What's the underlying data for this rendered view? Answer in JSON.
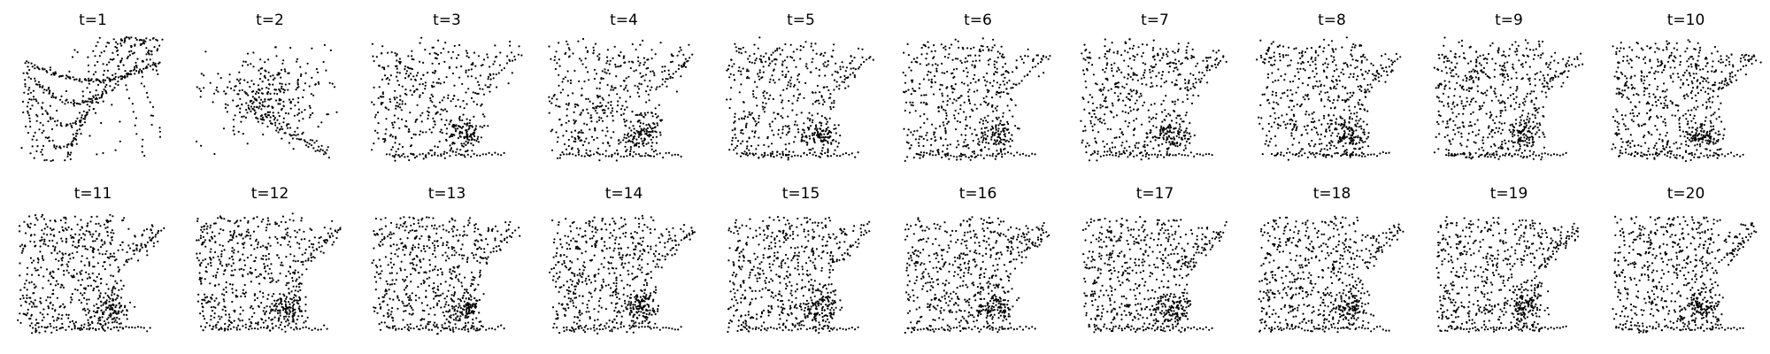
{
  "chart_data": {
    "type": "scatter",
    "layout": "2 rows x 10 columns grid of small scatter panels, axes hidden",
    "grid": false,
    "axes_visible": false,
    "marker_color": "#000000",
    "background": "#ffffff",
    "panels": [
      {
        "title": "t=1"
      },
      {
        "title": "t=2"
      },
      {
        "title": "t=3"
      },
      {
        "title": "t=4"
      },
      {
        "title": "t=5"
      },
      {
        "title": "t=6"
      },
      {
        "title": "t=7"
      },
      {
        "title": "t=8"
      },
      {
        "title": "t=9"
      },
      {
        "title": "t=10"
      },
      {
        "title": "t=11"
      },
      {
        "title": "t=12"
      },
      {
        "title": "t=13"
      },
      {
        "title": "t=14"
      },
      {
        "title": "t=15"
      },
      {
        "title": "t=16"
      },
      {
        "title": "t=17"
      },
      {
        "title": "t=18"
      },
      {
        "title": "t=19"
      },
      {
        "title": "t=20"
      }
    ]
  }
}
